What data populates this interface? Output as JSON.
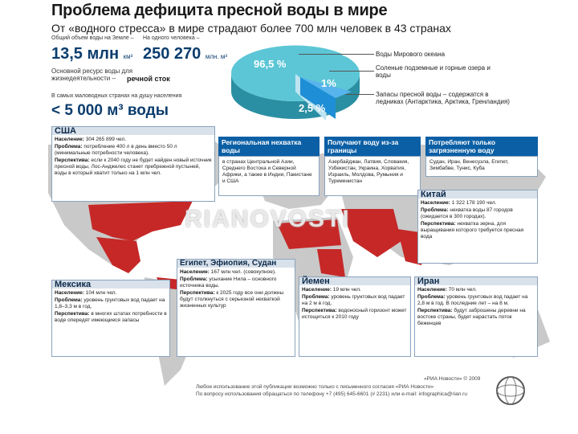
{
  "title": "Проблема дефицита пресной воды в мире",
  "subtitle": "От «водного стресса» в мире страдают более 700 млн человек в 43 странах",
  "stats": {
    "total_label": "Общий объем воды на Земле –",
    "total_value": "13,5 млн",
    "total_unit": "км³",
    "per_person_label": "На одного человека –",
    "per_person_value": "250 270",
    "per_person_unit": "млн. м³",
    "resource_label": "Основной ресурс воды для жизнедеятельности –",
    "resource_bold": "речной сток",
    "min_label": "В самых маловодных странах на душу населения",
    "min_value": "< 5 000 м³",
    "min_unit": "воды"
  },
  "pie": {
    "slices": [
      {
        "label": "96,5 %",
        "value": 96.5,
        "color": "#3fb2c6"
      },
      {
        "label": "1%",
        "value": 1,
        "color": "#9fd3e8"
      },
      {
        "label": "2,5 %",
        "value": 2.5,
        "color": "#1e8fd6"
      }
    ]
  },
  "legend": {
    "ocean": "Воды Мирового океана",
    "saline": "Соленые подземные и горные озера и воды",
    "fresh": "Запасы пресной воды – содержатся в ледниках (Антарктика, Арктика, Гренландия)"
  },
  "usa": {
    "title": "США",
    "pop_label": "Население:",
    "pop": "304 265 899 чел.",
    "problem_label": "Проблема:",
    "problem": "потребление 400 л в день вместо 50 л (минимальные потребности человека).",
    "outlook_label": "Перспектива:",
    "outlook": "если к 2040 году не будет найден новый источник пресной воды, Лос-Анджелес станет пребрежной пустыней, воды в который хватит только на 1 млн чел."
  },
  "categories": {
    "regional": {
      "title": "Региональная нехватка воды",
      "text": "в странах Центральной Азии, Среднего Востока и Северной Африки, а также в Индии, Пакистане и США"
    },
    "imported": {
      "title": "Получают воду из-за границы",
      "text": "Азербайджан, Латвия, Словакия, Узбекистан, Украина, Хорватия, Израиль, Молдова, Румыния и Туркменистан"
    },
    "polluted": {
      "title": "Потребляют только загрязненную воду",
      "text": "Судан, Иран, Венесуэла, Египет, Зимбабве, Тунис, Куба"
    }
  },
  "china": {
    "title": "Китай",
    "pop_label": "Население:",
    "pop": "1 322 178 190 чел.",
    "problem_label": "Проблема:",
    "problem": "нехватка воды 87 городов (ожидается в 300 городах).",
    "outlook_label": "Перспектива:",
    "outlook": "нехватка зерна, для выращивания которого требуется пресная вода"
  },
  "egypt": {
    "title": "Египет, Эфиопия, Судан",
    "pop_label": "Население:",
    "pop": "167 млн чел. (совокупное).",
    "problem_label": "Проблема:",
    "problem": "усыхание Нила – основного источника воды.",
    "outlook_label": "Перспектива:",
    "outlook": "к 2025 году все они должны будут столкнуться с серьезной нехваткой жизненных культур"
  },
  "mexico": {
    "title": "Мексика",
    "pop_label": "Население:",
    "pop": "104 млн чел.",
    "problem_label": "Проблема:",
    "problem": "уровень грунтовых вод падает на 1,8–3,3 м в год.",
    "outlook_label": "Перспектива:",
    "outlook": "в многих штатах потребности в воде опередят имеющиеся запасы"
  },
  "yemen": {
    "title": "Йемен",
    "pop_label": "Население:",
    "pop": "19 млн чел.",
    "problem_label": "Проблема:",
    "problem": "уровень грунтовых вод падает на 2 м в год.",
    "outlook_label": "Перспектива:",
    "outlook": "водоносный горизонт может истощиться к 2010 году"
  },
  "iran": {
    "title": "Иран",
    "pop_label": "Население:",
    "pop": "70 млн чел.",
    "problem_label": "Проблема:",
    "problem": "уровень грунтовых вод падает на 2,8 м в год. В последние лет – на 8 м.",
    "outlook_label": "Перспектива:",
    "outlook": "будут заброшены деревни на востоке страны, будет нарастать поток беженцев"
  },
  "watermark": "RIANOVOSTI",
  "footer": {
    "copyright": "«РИА Новости» © 2009",
    "line1": "Любое использование этой публикации возможно только с письменного согласия «РИА Новости»",
    "line2": "По вопросу использования обращаться по телефону +7 (495) 645-6601 (# 2231) или e-mail: infographica@rian.ru"
  },
  "colors": {
    "map_base": "#c9c9c9",
    "map_highlight": "#c62828",
    "accent": "#0b5fa5",
    "pie_main": "#3fb2c6"
  }
}
